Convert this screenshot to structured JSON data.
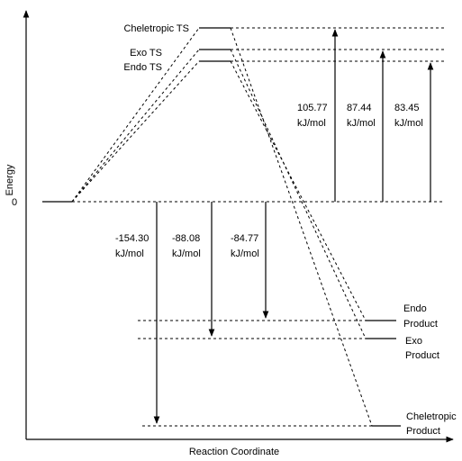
{
  "diagram": {
    "y_axis_label": "Energy",
    "x_axis_label": "Reaction Coordinate",
    "zero_label": "0",
    "transition_states": [
      {
        "name": "Cheletropic TS",
        "value": "105.77",
        "unit": "kJ/mol"
      },
      {
        "name": "Exo TS",
        "value": "87.44",
        "unit": "kJ/mol"
      },
      {
        "name": "Endo TS",
        "value": "83.45",
        "unit": "kJ/mol"
      }
    ],
    "products": [
      {
        "name_line1": "Cheletropic",
        "name_line2": "Product",
        "value": "-154.30",
        "unit": "kJ/mol"
      },
      {
        "name_line1": "Exo",
        "name_line2": "Product",
        "value": "-88.08",
        "unit": "kJ/mol"
      },
      {
        "name_line1": "Endo",
        "name_line2": "Product",
        "value": "-84.77",
        "unit": "kJ/mol"
      }
    ]
  }
}
